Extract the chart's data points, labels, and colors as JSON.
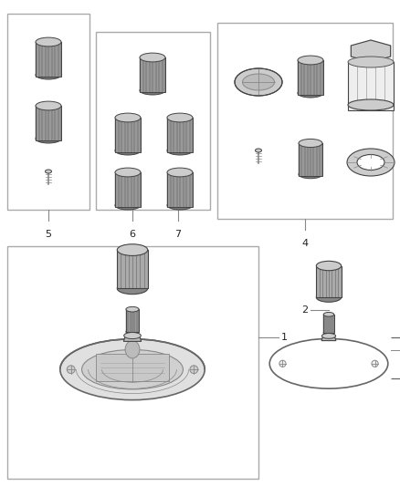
{
  "bg_color": "#ffffff",
  "line_color": "#666666",
  "dark": "#444444",
  "mid": "#888888",
  "light": "#cccccc",
  "vlight": "#eeeeee",
  "box_ec": "#aaaaaa",
  "label_color": "#222222",
  "figsize": [
    4.38,
    5.33
  ],
  "dpi": 100
}
